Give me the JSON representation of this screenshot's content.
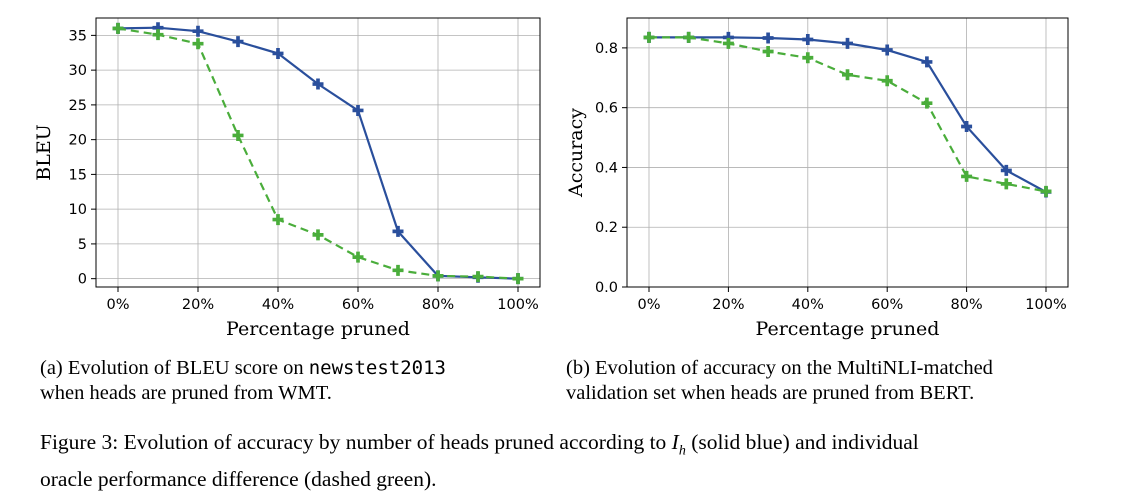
{
  "chart_data": [
    {
      "type": "line",
      "categories": [
        "0%",
        "10%",
        "20%",
        "30%",
        "40%",
        "50%",
        "60%",
        "70%",
        "80%",
        "90%",
        "100%"
      ],
      "x_ticks": [
        "0%",
        "20%",
        "40%",
        "60%",
        "80%",
        "100%"
      ],
      "y_ticks": [
        "0",
        "5",
        "10",
        "15",
        "20",
        "25",
        "30",
        "35"
      ],
      "ylim": [
        -1.2,
        37.5
      ],
      "xlabel": "Percentage pruned",
      "ylabel": "BLEU",
      "grid": true,
      "series": [
        {
          "color": "#2a4f9c",
          "style": "solid",
          "values": [
            36.0,
            36.1,
            35.6,
            34.1,
            32.4,
            28.0,
            24.2,
            6.8,
            0.4,
            0.2,
            0.0
          ]
        },
        {
          "color": "#4aad3b",
          "style": "dashed",
          "values": [
            36.0,
            35.1,
            33.8,
            20.6,
            8.5,
            6.3,
            3.1,
            1.2,
            0.4,
            0.3,
            0.0
          ]
        }
      ]
    },
    {
      "type": "line",
      "categories": [
        "0%",
        "10%",
        "20%",
        "30%",
        "40%",
        "50%",
        "60%",
        "70%",
        "80%",
        "90%",
        "100%"
      ],
      "x_ticks": [
        "0%",
        "20%",
        "40%",
        "60%",
        "80%",
        "100%"
      ],
      "y_ticks": [
        "0.0",
        "0.2",
        "0.4",
        "0.6",
        "0.8"
      ],
      "ylim": [
        0.0,
        0.9
      ],
      "xlabel": "Percentage pruned",
      "ylabel": "Accuracy",
      "grid": true,
      "series": [
        {
          "color": "#2a4f9c",
          "style": "solid",
          "values": [
            0.835,
            0.835,
            0.835,
            0.833,
            0.828,
            0.815,
            0.793,
            0.753,
            0.537,
            0.39,
            0.318
          ]
        },
        {
          "color": "#4aad3b",
          "style": "dashed",
          "values": [
            0.835,
            0.835,
            0.815,
            0.788,
            0.767,
            0.71,
            0.69,
            0.615,
            0.37,
            0.345,
            0.32
          ]
        }
      ]
    }
  ],
  "captions": {
    "a_prefix": "(a)  Evolution of BLEU score on ",
    "a_code": "newstest2013",
    "a_line2": "when heads are pruned from WMT.",
    "b_line1": "(b)  Evolution of accuracy on the MultiNLI-matched",
    "b_line2": "validation set when heads are pruned from BERT.",
    "fig_prefix": "Figure 3: Evolution of accuracy by number of heads pruned according to ",
    "fig_math_main": "I",
    "fig_math_sub": "h",
    "fig_suffix": " (solid blue) and individual",
    "fig_line2": "oracle performance difference (dashed green)."
  }
}
